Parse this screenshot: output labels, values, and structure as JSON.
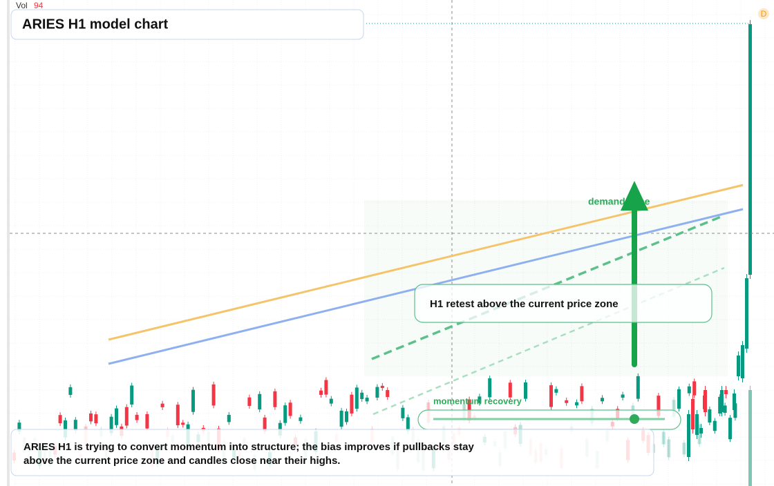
{
  "header": {
    "volume_label": "Vol",
    "volume_value": "94",
    "interval_badge": "D"
  },
  "title": "ARIES H1 model chart",
  "annotations": {
    "demand_zone": "demand zone",
    "retest_callout": "H1 retest above the current price zone",
    "momentum_label": "momentum recovery",
    "summary": [
      "ARIES H1 is trying to convert momentum into structure; the bias improves if pullbacks stay",
      "above the current price zone and candles close near their highs."
    ]
  }
}
